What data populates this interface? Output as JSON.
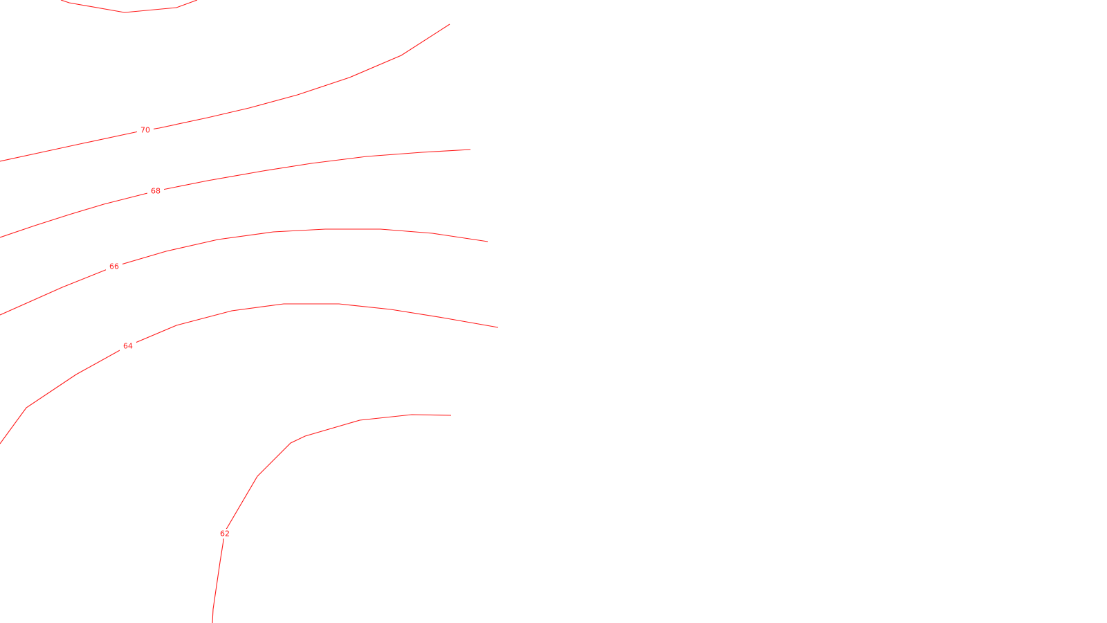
{
  "map": {
    "background_color": "#ffffff",
    "contour_color": "#ff1a1a",
    "contours": [
      {
        "id": "top",
        "level": null,
        "label": ""
      },
      {
        "id": "70",
        "level": 70,
        "label": "70"
      },
      {
        "id": "68",
        "level": 68,
        "label": "68"
      },
      {
        "id": "66",
        "level": 66,
        "label": "66"
      },
      {
        "id": "64",
        "level": 64,
        "label": "64"
      },
      {
        "id": "62",
        "level": 62,
        "label": "62"
      }
    ]
  }
}
